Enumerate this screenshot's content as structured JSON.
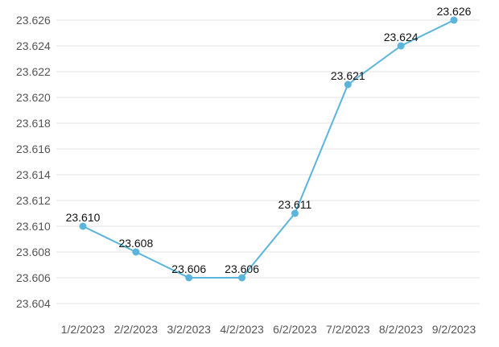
{
  "chart_data": {
    "type": "line",
    "title": "",
    "xlabel": "",
    "ylabel": "",
    "x": [
      "1/2/2023",
      "2/2/2023",
      "3/2/2023",
      "4/2/2023",
      "6/2/2023",
      "7/2/2023",
      "8/2/2023",
      "9/2/2023"
    ],
    "y_ticks": [
      "23.604",
      "23.606",
      "23.608",
      "23.610",
      "23.612",
      "23.614",
      "23.616",
      "23.618",
      "23.620",
      "23.622",
      "23.624",
      "23.626"
    ],
    "ylim": [
      23.603,
      23.627
    ],
    "grid": true,
    "legend": "none",
    "series": [
      {
        "values": [
          23.61,
          23.608,
          23.606,
          23.606,
          23.611,
          23.621,
          23.624,
          23.626
        ],
        "labels": [
          "23.610",
          "23.608",
          "23.606",
          "23.606",
          "23.611",
          "23.621",
          "23.624",
          "23.626"
        ],
        "color": "#5ab4dc"
      }
    ]
  }
}
